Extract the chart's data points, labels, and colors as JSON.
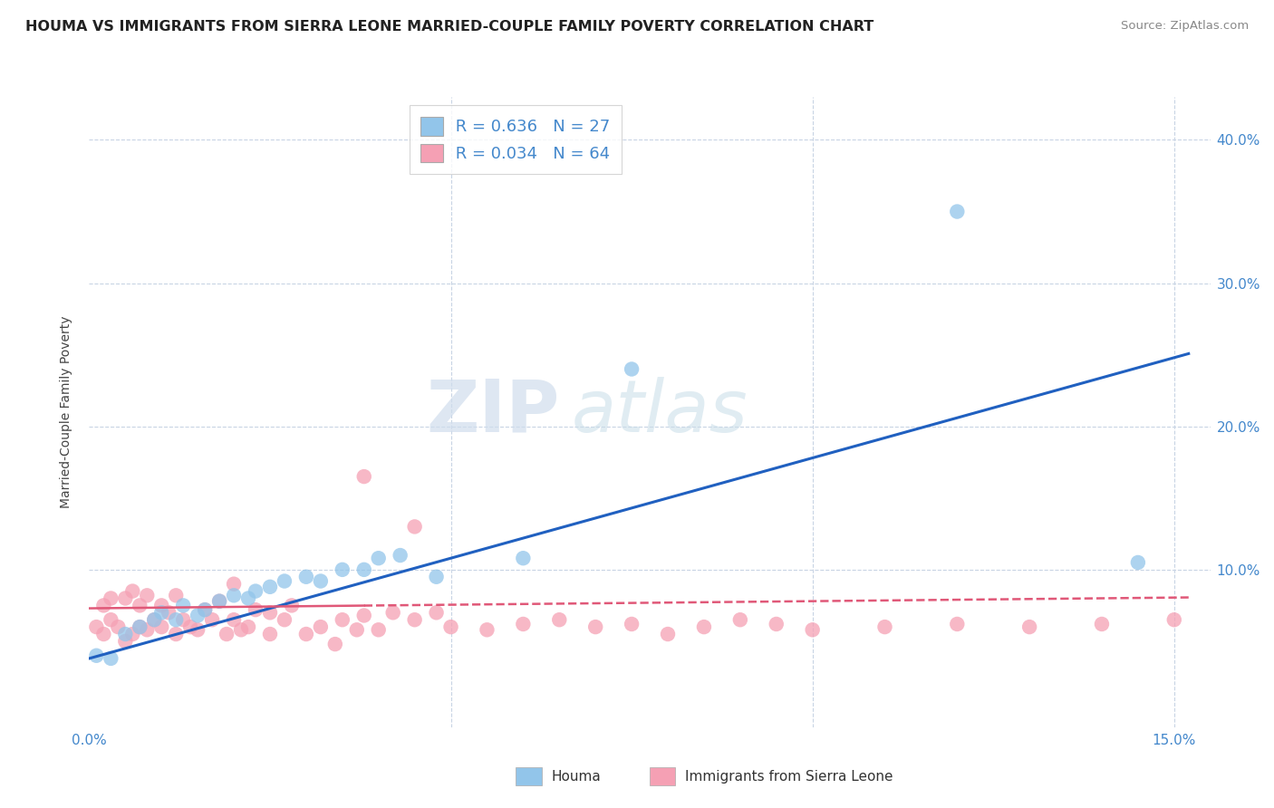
{
  "title": "HOUMA VS IMMIGRANTS FROM SIERRA LEONE MARRIED-COUPLE FAMILY POVERTY CORRELATION CHART",
  "source_text": "Source: ZipAtlas.com",
  "ylabel": "Married-Couple Family Poverty",
  "xlim": [
    0.0,
    0.155
  ],
  "ylim": [
    -0.01,
    0.43
  ],
  "legend_r1": "R = 0.636",
  "legend_n1": "N = 27",
  "legend_r2": "R = 0.034",
  "legend_n2": "N = 64",
  "color_houma": "#92C5EA",
  "color_sierra": "#F5A0B4",
  "color_line_houma": "#2060C0",
  "color_line_sierra": "#E05878",
  "watermark_zip": "ZIP",
  "watermark_atlas": "atlas",
  "background_color": "#ffffff",
  "grid_color": "#c8d4e4",
  "houma_x": [
    0.001,
    0.003,
    0.005,
    0.007,
    0.009,
    0.01,
    0.012,
    0.013,
    0.015,
    0.016,
    0.018,
    0.02,
    0.022,
    0.023,
    0.025,
    0.027,
    0.03,
    0.032,
    0.035,
    0.038,
    0.04,
    0.043,
    0.048,
    0.06,
    0.075,
    0.12,
    0.145
  ],
  "houma_y": [
    0.04,
    0.038,
    0.055,
    0.06,
    0.065,
    0.07,
    0.065,
    0.075,
    0.068,
    0.072,
    0.078,
    0.082,
    0.08,
    0.085,
    0.088,
    0.092,
    0.095,
    0.092,
    0.1,
    0.1,
    0.108,
    0.11,
    0.095,
    0.108,
    0.24,
    0.35,
    0.105
  ],
  "sierra_x": [
    0.001,
    0.002,
    0.002,
    0.003,
    0.003,
    0.004,
    0.005,
    0.005,
    0.006,
    0.006,
    0.007,
    0.007,
    0.008,
    0.008,
    0.009,
    0.01,
    0.01,
    0.011,
    0.012,
    0.012,
    0.013,
    0.014,
    0.015,
    0.016,
    0.017,
    0.018,
    0.019,
    0.02,
    0.021,
    0.022,
    0.023,
    0.025,
    0.027,
    0.028,
    0.03,
    0.032,
    0.034,
    0.035,
    0.037,
    0.038,
    0.04,
    0.042,
    0.045,
    0.048,
    0.05,
    0.055,
    0.06,
    0.065,
    0.07,
    0.075,
    0.08,
    0.085,
    0.09,
    0.095,
    0.1,
    0.11,
    0.12,
    0.13,
    0.14,
    0.15,
    0.038,
    0.045,
    0.02,
    0.025
  ],
  "sierra_y": [
    0.06,
    0.055,
    0.075,
    0.065,
    0.08,
    0.06,
    0.05,
    0.08,
    0.055,
    0.085,
    0.06,
    0.075,
    0.058,
    0.082,
    0.065,
    0.06,
    0.075,
    0.07,
    0.055,
    0.082,
    0.065,
    0.06,
    0.058,
    0.072,
    0.065,
    0.078,
    0.055,
    0.065,
    0.058,
    0.06,
    0.072,
    0.07,
    0.065,
    0.075,
    0.055,
    0.06,
    0.048,
    0.065,
    0.058,
    0.068,
    0.058,
    0.07,
    0.065,
    0.07,
    0.06,
    0.058,
    0.062,
    0.065,
    0.06,
    0.062,
    0.055,
    0.06,
    0.065,
    0.062,
    0.058,
    0.06,
    0.062,
    0.06,
    0.062,
    0.065,
    0.165,
    0.13,
    0.09,
    0.055
  ]
}
